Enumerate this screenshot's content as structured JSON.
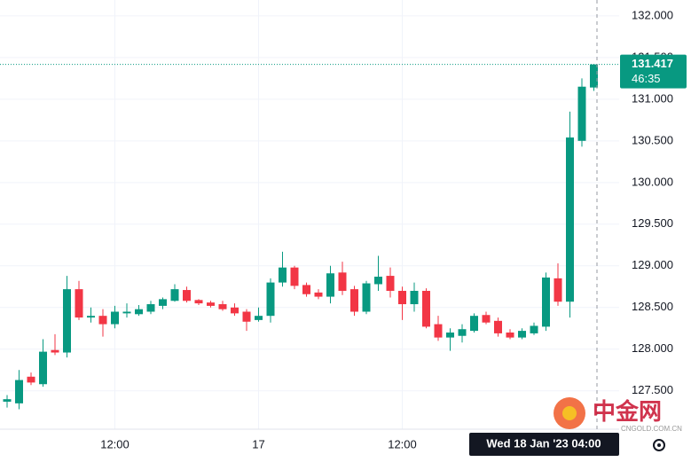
{
  "chart_data": {
    "type": "candlestick",
    "categories": [
      null,
      null,
      null,
      null,
      null,
      null,
      null,
      null,
      null,
      "12:00",
      null,
      null,
      null,
      null,
      null,
      null,
      null,
      null,
      null,
      null,
      null,
      "17",
      null,
      null,
      null,
      null,
      null,
      null,
      null,
      null,
      null,
      null,
      null,
      "12:00",
      null,
      null,
      null,
      null,
      null,
      null,
      null,
      null,
      null,
      null,
      null,
      null,
      null,
      null,
      null,
      null
    ],
    "open": [
      127.37,
      127.35,
      127.67,
      127.58,
      127.99,
      127.96,
      128.72,
      128.38,
      128.4,
      128.3,
      128.43,
      128.42,
      128.45,
      128.52,
      128.58,
      128.71,
      128.59,
      128.56,
      128.54,
      128.5,
      128.45,
      128.35,
      128.4,
      128.8,
      128.98,
      128.77,
      128.68,
      128.63,
      128.92,
      128.72,
      128.45,
      128.78,
      128.88,
      128.7,
      128.54,
      128.7,
      128.3,
      128.14,
      128.16,
      128.22,
      128.41,
      128.34,
      128.2,
      128.14,
      128.19,
      128.27,
      128.85,
      128.57,
      130.5,
      131.14
    ],
    "high": [
      127.45,
      127.75,
      127.72,
      128.12,
      128.18,
      128.88,
      128.82,
      128.5,
      128.48,
      128.52,
      128.55,
      128.53,
      128.58,
      128.62,
      128.78,
      128.75,
      128.6,
      128.58,
      128.58,
      128.55,
      128.48,
      128.5,
      128.85,
      129.17,
      129.0,
      128.8,
      128.72,
      129.0,
      129.05,
      128.76,
      128.82,
      129.12,
      128.98,
      128.75,
      128.8,
      128.73,
      128.4,
      128.25,
      128.3,
      128.43,
      128.45,
      128.38,
      128.24,
      128.25,
      128.32,
      128.92,
      129.03,
      130.85,
      131.25,
      131.42
    ],
    "low": [
      127.3,
      127.28,
      127.57,
      127.55,
      127.93,
      127.9,
      128.35,
      128.32,
      128.15,
      128.25,
      128.38,
      128.4,
      128.42,
      128.48,
      128.57,
      128.56,
      128.53,
      128.5,
      128.46,
      128.4,
      128.22,
      128.33,
      128.32,
      128.75,
      128.72,
      128.63,
      128.6,
      128.55,
      128.65,
      128.4,
      128.42,
      128.7,
      128.62,
      128.35,
      128.45,
      128.25,
      128.1,
      127.98,
      128.08,
      128.2,
      128.3,
      128.15,
      128.12,
      128.12,
      128.17,
      128.22,
      128.52,
      128.38,
      130.43,
      131.1
    ],
    "close": [
      127.4,
      127.63,
      127.6,
      127.97,
      127.96,
      128.72,
      128.38,
      128.4,
      128.3,
      128.45,
      128.45,
      128.48,
      128.54,
      128.6,
      128.72,
      128.58,
      128.55,
      128.52,
      128.48,
      128.43,
      128.33,
      128.4,
      128.8,
      128.98,
      128.76,
      128.66,
      128.63,
      128.91,
      128.7,
      128.45,
      128.79,
      128.87,
      128.7,
      128.54,
      128.7,
      128.27,
      128.14,
      128.2,
      128.24,
      128.4,
      128.32,
      128.19,
      128.14,
      128.22,
      128.28,
      128.86,
      128.57,
      130.54,
      131.15,
      131.417
    ],
    "up_color": "#089981",
    "down_color": "#f23645",
    "ylim": [
      127.04,
      132.19
    ],
    "yticks": [
      {
        "value": 127.5,
        "label": "127.500"
      },
      {
        "value": 128,
        "label": "128.000"
      },
      {
        "value": 128.5,
        "label": "128.500"
      },
      {
        "value": 129,
        "label": "129.000"
      },
      {
        "value": 129.5,
        "label": "129.500"
      },
      {
        "value": 130,
        "label": "130.000"
      },
      {
        "value": 130.5,
        "label": "130.500"
      },
      {
        "value": 131,
        "label": "131.000"
      },
      {
        "value": 131.5,
        "label": "131.500"
      },
      {
        "value": 132,
        "label": "132.000"
      }
    ],
    "grid": true,
    "last_price": 131.417,
    "countdown": "46:35",
    "crosshair_label": "Wed 18 Jan '23 04:00",
    "watermark": "中金网",
    "watermark_sub": "CNGOLD.COM.CN"
  }
}
